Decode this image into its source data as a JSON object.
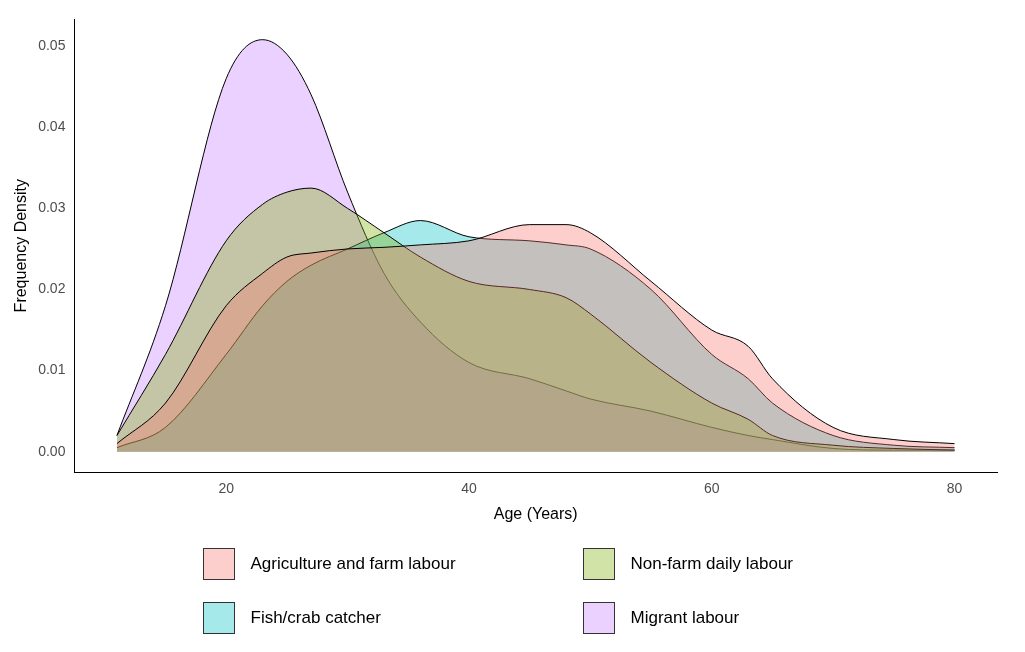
{
  "chart_data": {
    "type": "area",
    "xlabel": "Age (Years)",
    "ylabel": "Frequency Density",
    "x": [
      11,
      15,
      20,
      23,
      25,
      27,
      30,
      33,
      36,
      40,
      45,
      48,
      50,
      55,
      60,
      63,
      65,
      70,
      75,
      80
    ],
    "series": [
      {
        "name": "Agriculture and farm labour",
        "color": "#f8766d",
        "values": [
          0.001,
          0.006,
          0.018,
          0.022,
          0.024,
          0.0245,
          0.025,
          0.0252,
          0.0255,
          0.026,
          0.028,
          0.028,
          0.027,
          0.021,
          0.015,
          0.013,
          0.009,
          0.003,
          0.0015,
          0.001
        ]
      },
      {
        "name": "Non-farm daily labour",
        "color": "#7cae00",
        "values": [
          0.002,
          0.012,
          0.026,
          0.0305,
          0.032,
          0.0325,
          0.03,
          0.027,
          0.024,
          0.021,
          0.02,
          0.019,
          0.017,
          0.011,
          0.006,
          0.004,
          0.002,
          0.0008,
          0.0004,
          0.0002
        ]
      },
      {
        "name": "Fish/crab catcher",
        "color": "#00bfc4",
        "values": [
          0.0005,
          0.003,
          0.012,
          0.018,
          0.021,
          0.023,
          0.025,
          0.027,
          0.0285,
          0.0265,
          0.026,
          0.0255,
          0.025,
          0.02,
          0.012,
          0.009,
          0.006,
          0.002,
          0.0008,
          0.0005
        ]
      },
      {
        "name": "Migrant labour",
        "color": "#c77cff",
        "values": [
          0.002,
          0.018,
          0.046,
          0.0508,
          0.049,
          0.044,
          0.032,
          0.022,
          0.016,
          0.011,
          0.009,
          0.0075,
          0.0065,
          0.005,
          0.003,
          0.002,
          0.0015,
          0.0004,
          0.0002,
          0.0002
        ]
      }
    ],
    "xlim": [
      7.5,
      83.5
    ],
    "ylim": [
      -0.0025,
      0.0533
    ],
    "xticks": [
      20,
      40,
      60,
      80
    ],
    "yticks": [
      {
        "value": 0,
        "label": "0.00"
      },
      0.01,
      0.02,
      0.03,
      0.04,
      0.05
    ],
    "grid": false,
    "legend": "bottom"
  }
}
